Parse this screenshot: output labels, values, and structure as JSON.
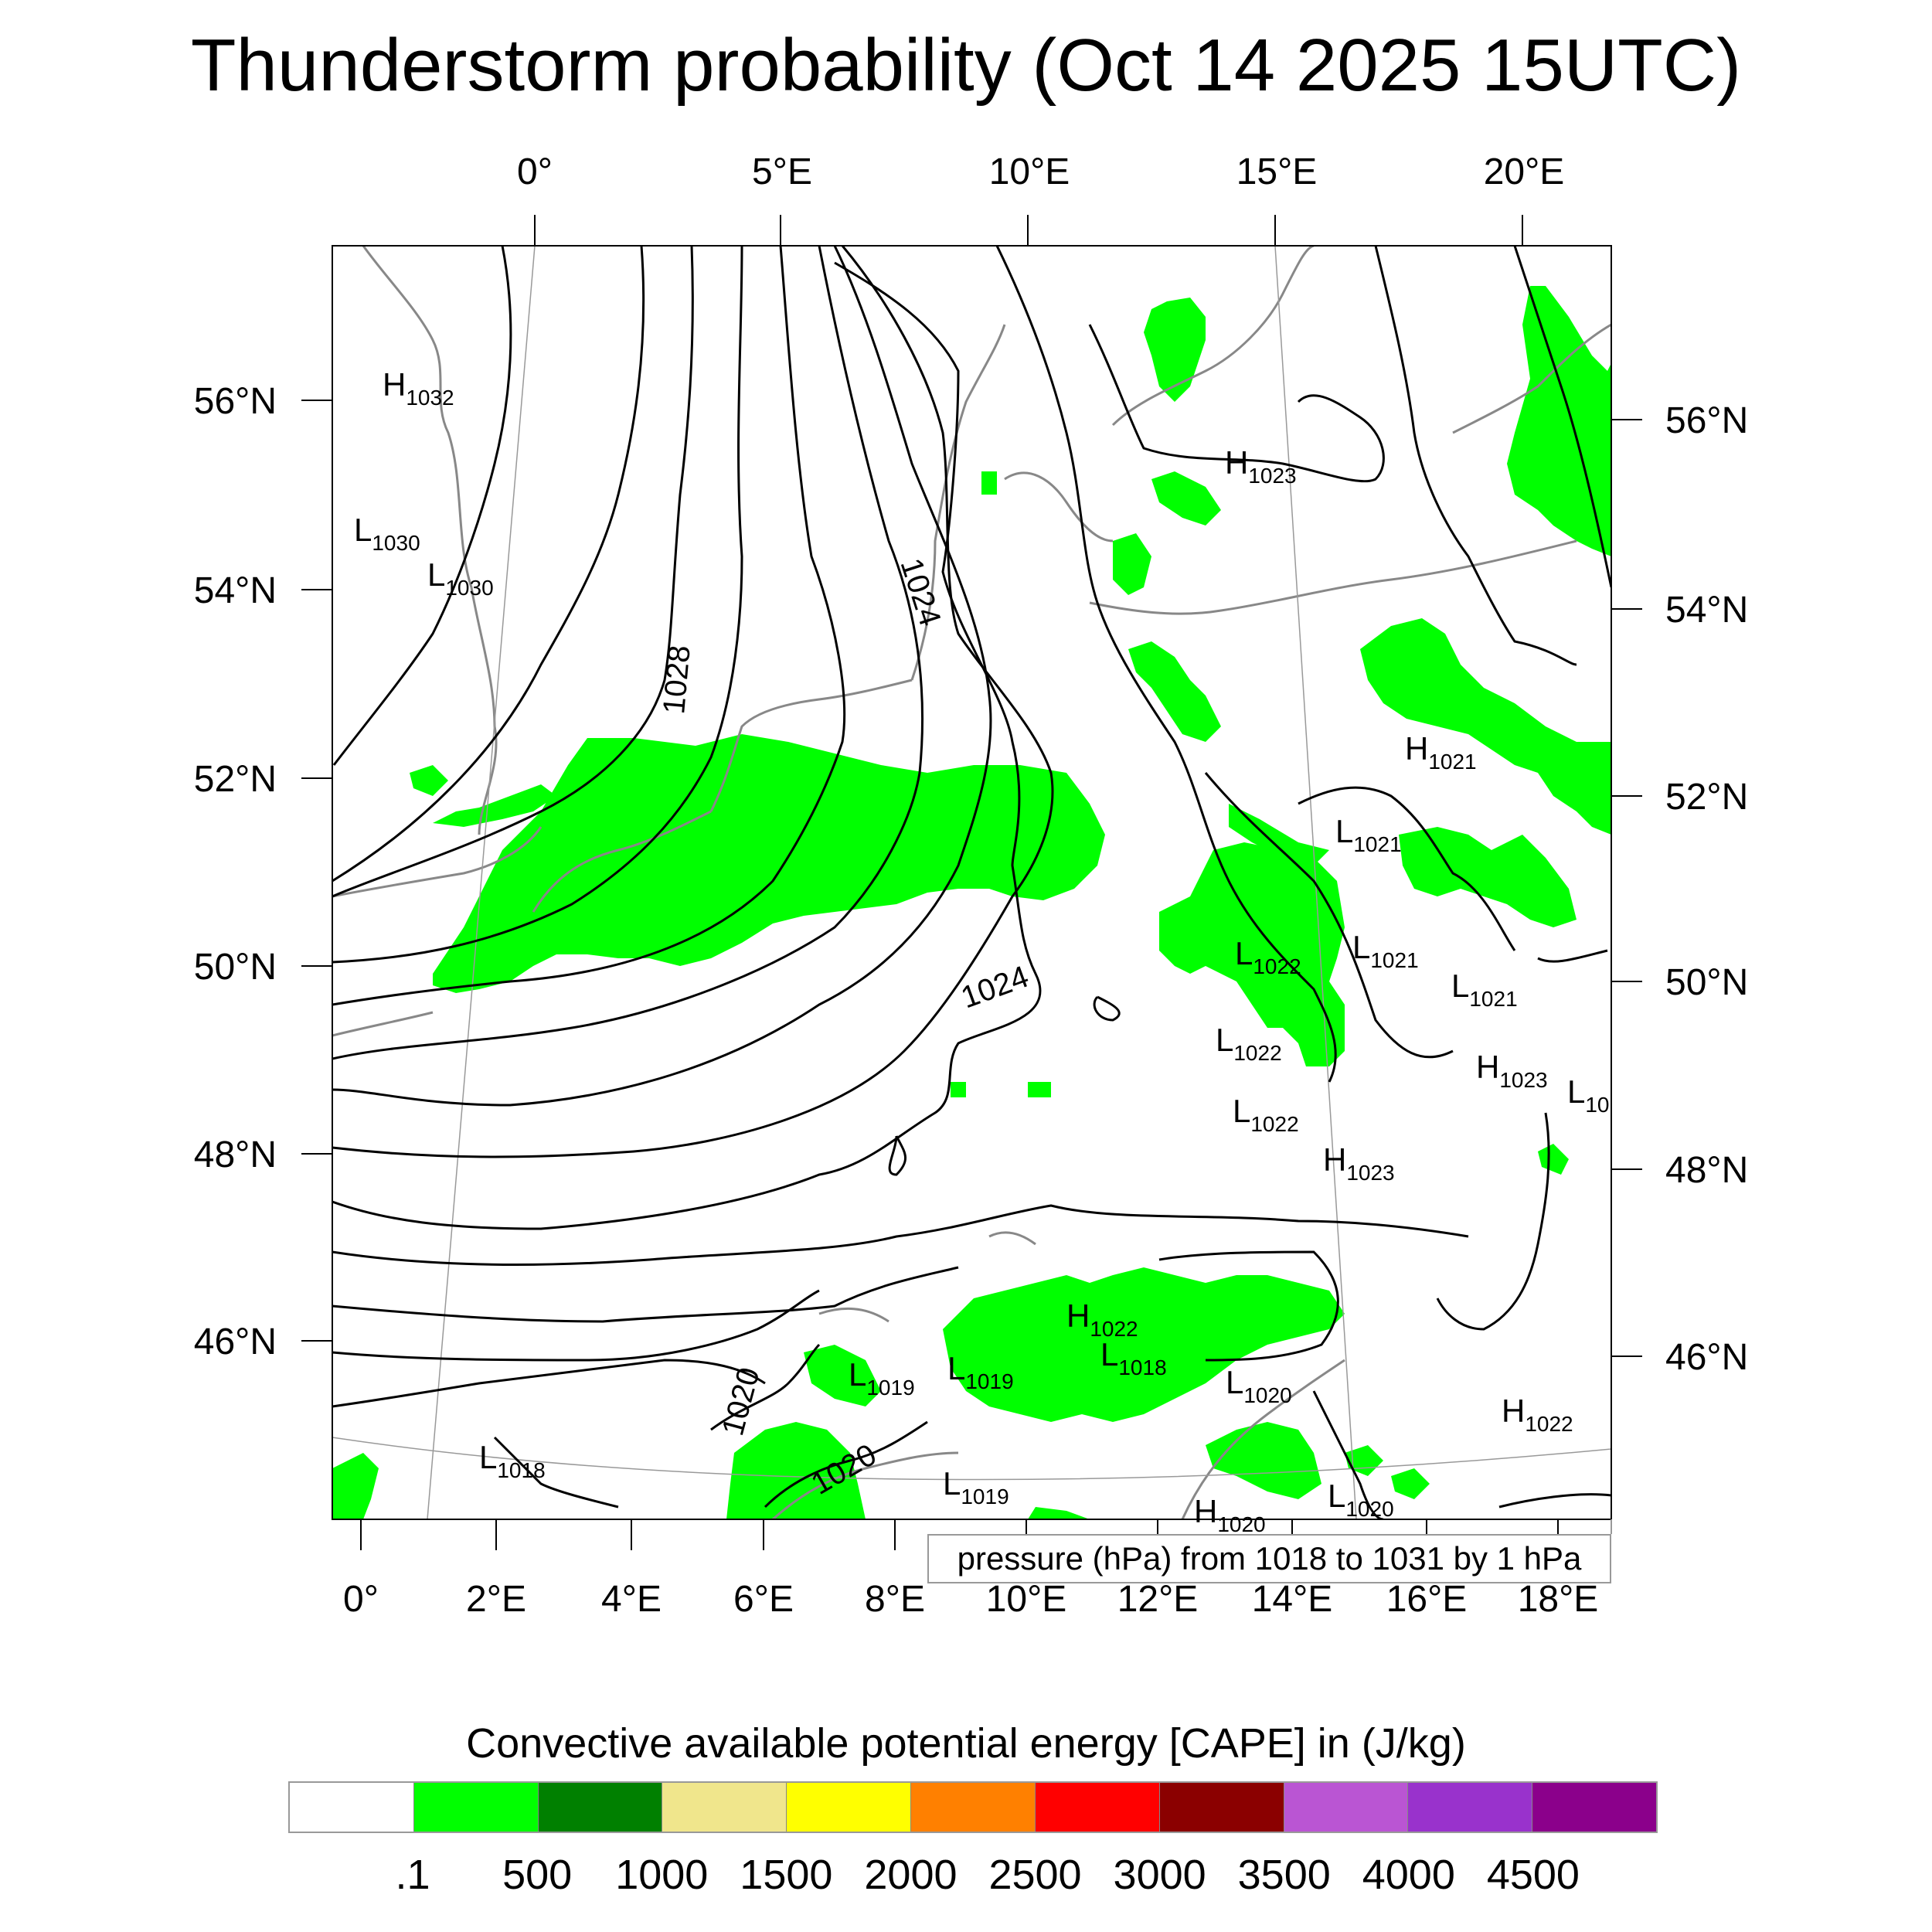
{
  "title": "Thunderstorm probability (Oct 14 2025 15UTC)",
  "map": {
    "top_lon_labels": [
      "0°",
      "5°E",
      "10°E",
      "15°E",
      "20°E"
    ],
    "bottom_lon_labels": [
      "0°",
      "2°E",
      "4°E",
      "6°E",
      "8°E",
      "10°E",
      "12°E",
      "14°E",
      "16°E",
      "18°E"
    ],
    "left_lat_labels": [
      "56°N",
      "54°N",
      "52°N",
      "50°N",
      "48°N",
      "46°N"
    ],
    "right_lat_labels": [
      "56°N",
      "54°N",
      "52°N",
      "50°N",
      "48°N",
      "46°N"
    ],
    "isobar_labels": [
      "1028",
      "1024",
      "1024",
      "1020",
      "1020"
    ],
    "pressure_centers": [
      {
        "kind": "H",
        "value": "1032"
      },
      {
        "kind": "L",
        "value": "1030"
      },
      {
        "kind": "L",
        "value": "1030"
      },
      {
        "kind": "H",
        "value": "1023"
      },
      {
        "kind": "H",
        "value": "1021"
      },
      {
        "kind": "L",
        "value": "1021"
      },
      {
        "kind": "L",
        "value": "1021"
      },
      {
        "kind": "L",
        "value": "1021"
      },
      {
        "kind": "L",
        "value": "1022"
      },
      {
        "kind": "L",
        "value": "1022"
      },
      {
        "kind": "L",
        "value": "1022"
      },
      {
        "kind": "H",
        "value": "1023"
      },
      {
        "kind": "H",
        "value": "1023"
      },
      {
        "kind": "L",
        "value": "10"
      },
      {
        "kind": "H",
        "value": "1022"
      },
      {
        "kind": "L",
        "value": "1019"
      },
      {
        "kind": "L",
        "value": "1019"
      },
      {
        "kind": "L",
        "value": "1018"
      },
      {
        "kind": "L",
        "value": "1020"
      },
      {
        "kind": "H",
        "value": "1022"
      },
      {
        "kind": "L",
        "value": "1018"
      },
      {
        "kind": "L",
        "value": "1019"
      },
      {
        "kind": "H",
        "value": "1020"
      },
      {
        "kind": "L",
        "value": "1020"
      }
    ]
  },
  "pressure_note": "pressure (hPa) from 1018 to 1031 by 1 hPa",
  "colorbar": {
    "title": "Convective available potential energy [CAPE] in (J/kg)",
    "colors": [
      "#ffffff",
      "#00ff00",
      "#008000",
      "#f0e68c",
      "#ffff00",
      "#ff8000",
      "#ff0000",
      "#8b0000",
      "#ba55d3",
      "#9932cc",
      "#8b008b"
    ],
    "labels": [
      ".1",
      "500",
      "1000",
      "1500",
      "2000",
      "2500",
      "3000",
      "3500",
      "4000",
      "4500"
    ]
  },
  "cape_fill_color": "#00ff00"
}
